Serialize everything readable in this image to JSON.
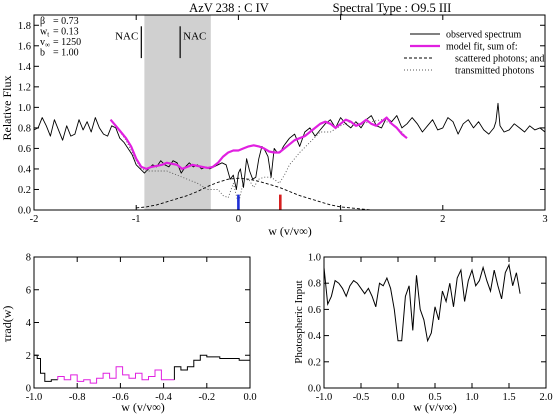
{
  "chart_data": [
    {
      "id": "main",
      "type": "line",
      "title_left": "AzV 238 : C IV",
      "title_right": "Spectral Type : O9.5 III",
      "xlabel": "w (v/v∞)",
      "ylabel": "Relative Flux",
      "xlim": [
        -2,
        3
      ],
      "ylim": [
        0,
        1.9
      ],
      "xticks": [
        -2,
        -1,
        0,
        1,
        2,
        3
      ],
      "yticks": [
        0.0,
        0.2,
        0.4,
        0.6,
        0.8,
        1.0,
        1.2,
        1.4,
        1.6,
        1.8
      ],
      "shaded_region": [
        -0.92,
        -0.27
      ],
      "params": [
        {
          "sym": "β",
          "val": "=  0.73"
        },
        {
          "sym": "w",
          "sub": "t",
          "val": "=  0.13"
        },
        {
          "sym": "v",
          "sub": "∞",
          "val": "=  1250"
        },
        {
          "sym": "b",
          "val": "=  1.00"
        }
      ],
      "nac_markers": [
        {
          "label": "NAC",
          "x": -0.95,
          "side": "left"
        },
        {
          "label": "NAC",
          "x": -0.57,
          "side": "right"
        }
      ],
      "ion_markers": [
        {
          "x": 0.0,
          "color": "#1f2fd6"
        },
        {
          "x": 0.41,
          "color": "#d61f1f"
        }
      ],
      "legend": [
        {
          "label": "observed spectrum",
          "style": "solid-thin"
        },
        {
          "label": "model fit, sum of:",
          "style": "solid-magenta"
        },
        {
          "label": "scattered photons; and",
          "style": "dashed"
        },
        {
          "label": "transmitted photons",
          "style": "dotted"
        }
      ],
      "series": [
        {
          "name": "observed spectrum",
          "color": "#000000",
          "x": [
            -2.0,
            -1.96,
            -1.92,
            -1.88,
            -1.84,
            -1.8,
            -1.76,
            -1.72,
            -1.68,
            -1.64,
            -1.6,
            -1.56,
            -1.52,
            -1.48,
            -1.44,
            -1.4,
            -1.36,
            -1.32,
            -1.28,
            -1.24,
            -1.2,
            -1.16,
            -1.12,
            -1.08,
            -1.04,
            -1.0,
            -0.96,
            -0.92,
            -0.88,
            -0.84,
            -0.8,
            -0.76,
            -0.72,
            -0.68,
            -0.64,
            -0.6,
            -0.56,
            -0.52,
            -0.48,
            -0.44,
            -0.4,
            -0.36,
            -0.32,
            -0.28,
            -0.24,
            -0.2,
            -0.16,
            -0.12,
            -0.08,
            -0.05,
            -0.02,
            0.0,
            0.02,
            0.05,
            0.08,
            0.11,
            0.14,
            0.17,
            0.2,
            0.23,
            0.26,
            0.29,
            0.32,
            0.35,
            0.38,
            0.41,
            0.44,
            0.47,
            0.5,
            0.55,
            0.6,
            0.65,
            0.7,
            0.75,
            0.8,
            0.85,
            0.9,
            0.95,
            1.0,
            1.05,
            1.1,
            1.15,
            1.2,
            1.25,
            1.3,
            1.35,
            1.4,
            1.45,
            1.5,
            1.55,
            1.6,
            1.65,
            1.7,
            1.75,
            1.8,
            1.85,
            1.9,
            1.95,
            2.0,
            2.05,
            2.1,
            2.15,
            2.2,
            2.25,
            2.3,
            2.35,
            2.4,
            2.45,
            2.5,
            2.52,
            2.54,
            2.56,
            2.6,
            2.65,
            2.7,
            2.75,
            2.8,
            2.85,
            2.9,
            2.95,
            3.0
          ],
          "y": [
            0.78,
            0.8,
            0.9,
            0.82,
            0.72,
            0.88,
            0.78,
            0.68,
            0.82,
            0.72,
            0.74,
            0.88,
            0.78,
            0.86,
            0.76,
            0.9,
            0.8,
            0.74,
            0.72,
            0.82,
            0.8,
            0.7,
            0.66,
            0.6,
            0.54,
            0.44,
            0.4,
            0.36,
            0.4,
            0.44,
            0.42,
            0.48,
            0.44,
            0.42,
            0.48,
            0.46,
            0.36,
            0.42,
            0.46,
            0.42,
            0.44,
            0.4,
            0.42,
            0.4,
            0.42,
            0.44,
            0.46,
            0.44,
            0.3,
            0.34,
            0.2,
            0.36,
            0.4,
            0.22,
            0.5,
            0.38,
            0.3,
            0.32,
            0.5,
            0.62,
            0.58,
            0.52,
            0.32,
            0.6,
            0.56,
            0.56,
            0.62,
            0.66,
            0.7,
            0.74,
            0.62,
            0.76,
            0.8,
            0.72,
            0.78,
            0.84,
            0.88,
            0.8,
            0.9,
            0.84,
            0.8,
            0.86,
            0.8,
            0.88,
            0.92,
            0.82,
            0.8,
            0.9,
            0.86,
            0.92,
            0.8,
            0.84,
            0.9,
            0.84,
            0.76,
            0.82,
            0.88,
            0.78,
            0.8,
            0.9,
            0.86,
            0.74,
            0.84,
            0.88,
            0.8,
            0.86,
            0.78,
            0.74,
            0.8,
            0.86,
            1.04,
            0.82,
            0.76,
            0.78,
            0.84,
            0.8,
            0.76,
            0.82,
            0.78,
            0.8,
            0.76
          ]
        },
        {
          "name": "model fit, sum of:",
          "color": "#e020e0",
          "x": [
            -1.25,
            -1.2,
            -1.15,
            -1.1,
            -1.05,
            -1.0,
            -0.95,
            -0.9,
            -0.85,
            -0.8,
            -0.75,
            -0.7,
            -0.65,
            -0.6,
            -0.55,
            -0.5,
            -0.45,
            -0.4,
            -0.35,
            -0.3,
            -0.25,
            -0.2,
            -0.15,
            -0.1,
            -0.05,
            0.0,
            0.05,
            0.1,
            0.15,
            0.2,
            0.25,
            0.3,
            0.35,
            0.4,
            0.45,
            0.5,
            0.55,
            0.6,
            0.65,
            0.7,
            0.75,
            0.8,
            0.85,
            0.9,
            0.95,
            1.0,
            1.05,
            1.1,
            1.15,
            1.2,
            1.25,
            1.3,
            1.35,
            1.4,
            1.45,
            1.5,
            1.55,
            1.6,
            1.65
          ],
          "y": [
            0.88,
            0.82,
            0.76,
            0.7,
            0.62,
            0.5,
            0.42,
            0.4,
            0.42,
            0.43,
            0.44,
            0.46,
            0.45,
            0.44,
            0.4,
            0.42,
            0.44,
            0.43,
            0.42,
            0.41,
            0.42,
            0.46,
            0.52,
            0.56,
            0.58,
            0.58,
            0.6,
            0.62,
            0.63,
            0.62,
            0.6,
            0.57,
            0.56,
            0.56,
            0.6,
            0.64,
            0.68,
            0.7,
            0.72,
            0.76,
            0.8,
            0.84,
            0.86,
            0.84,
            0.8,
            0.84,
            0.88,
            0.86,
            0.82,
            0.84,
            0.88,
            0.84,
            0.82,
            0.86,
            0.9,
            0.84,
            0.8,
            0.74,
            0.7
          ]
        },
        {
          "name": "scattered photons; and",
          "color": "#000000",
          "dash": "3,2",
          "x": [
            -1.0,
            -0.9,
            -0.8,
            -0.7,
            -0.6,
            -0.5,
            -0.4,
            -0.3,
            -0.2,
            -0.1,
            0.0,
            0.1,
            0.2,
            0.3,
            0.4,
            0.5,
            0.6,
            0.7,
            0.8,
            0.9,
            1.0,
            1.1,
            1.2,
            1.3
          ],
          "y": [
            0.02,
            0.03,
            0.05,
            0.08,
            0.11,
            0.14,
            0.18,
            0.23,
            0.27,
            0.3,
            0.31,
            0.3,
            0.28,
            0.25,
            0.22,
            0.18,
            0.14,
            0.11,
            0.08,
            0.05,
            0.03,
            0.02,
            0.01,
            0.0
          ]
        },
        {
          "name": "transmitted photons",
          "color": "#555555",
          "dash": "1,2",
          "x": [
            -1.25,
            -1.2,
            -1.1,
            -1.0,
            -0.95,
            -0.9,
            -0.8,
            -0.7,
            -0.6,
            -0.5,
            -0.4,
            -0.3,
            -0.2,
            -0.15,
            -0.1,
            -0.05,
            0.0,
            0.05,
            0.1,
            0.15,
            0.2,
            0.25,
            0.3,
            0.35,
            0.4,
            0.45,
            0.5,
            0.6,
            0.7,
            0.8,
            0.9,
            1.0,
            1.1,
            1.2,
            1.3,
            1.4,
            1.5,
            1.6,
            1.65
          ],
          "y": [
            0.88,
            0.82,
            0.68,
            0.48,
            0.4,
            0.38,
            0.38,
            0.38,
            0.34,
            0.3,
            0.26,
            0.2,
            0.2,
            0.14,
            0.12,
            0.26,
            0.06,
            0.28,
            0.3,
            0.22,
            0.3,
            0.32,
            0.32,
            0.3,
            0.26,
            0.34,
            0.44,
            0.56,
            0.66,
            0.76,
            0.76,
            0.82,
            0.86,
            0.84,
            0.86,
            0.88,
            0.84,
            0.76,
            0.7
          ]
        }
      ]
    },
    {
      "id": "tau",
      "type": "line",
      "xlabel": "w (v/v∞)",
      "ylabel": "τrad(w)",
      "xlim": [
        -1.0,
        0.0
      ],
      "ylim": [
        0,
        8
      ],
      "xticks": [
        -1.0,
        -0.8,
        -0.6,
        -0.4,
        -0.2,
        0.0
      ],
      "yticks": [
        0,
        2,
        4,
        6,
        8
      ],
      "series": [
        {
          "name": "black",
          "color": "#000000",
          "points": [
            [
              -1.0,
              2.0
            ],
            [
              -0.985,
              2.0
            ],
            [
              -0.985,
              1.8
            ],
            [
              -0.97,
              1.8
            ],
            [
              -0.97,
              0.9
            ],
            [
              -0.95,
              0.9
            ],
            [
              -0.95,
              0.4
            ],
            [
              -0.92,
              0.4
            ],
            [
              -0.92,
              0.5
            ],
            [
              -0.89,
              0.5
            ]
          ]
        },
        {
          "name": "magenta",
          "color": "#e020e0",
          "points": [
            [
              -0.89,
              0.5
            ],
            [
              -0.89,
              0.7
            ],
            [
              -0.86,
              0.7
            ],
            [
              -0.86,
              0.5
            ],
            [
              -0.83,
              0.5
            ],
            [
              -0.83,
              0.8
            ],
            [
              -0.8,
              0.8
            ],
            [
              -0.8,
              0.4
            ],
            [
              -0.77,
              0.4
            ],
            [
              -0.77,
              0.5
            ],
            [
              -0.74,
              0.5
            ],
            [
              -0.74,
              0.3
            ],
            [
              -0.71,
              0.3
            ],
            [
              -0.71,
              0.6
            ],
            [
              -0.68,
              0.6
            ],
            [
              -0.68,
              0.9
            ],
            [
              -0.65,
              0.9
            ],
            [
              -0.65,
              0.6
            ],
            [
              -0.62,
              0.6
            ],
            [
              -0.62,
              1.3
            ],
            [
              -0.59,
              1.3
            ],
            [
              -0.59,
              0.8
            ],
            [
              -0.56,
              0.8
            ],
            [
              -0.56,
              0.6
            ],
            [
              -0.53,
              0.6
            ],
            [
              -0.53,
              0.9
            ],
            [
              -0.5,
              0.9
            ],
            [
              -0.5,
              0.5
            ],
            [
              -0.47,
              0.5
            ],
            [
              -0.47,
              0.7
            ],
            [
              -0.44,
              0.7
            ],
            [
              -0.44,
              1.1
            ],
            [
              -0.41,
              1.1
            ],
            [
              -0.41,
              0.5
            ],
            [
              -0.38,
              0.5
            ],
            [
              -0.38,
              0.5
            ],
            [
              -0.35,
              0.5
            ]
          ]
        },
        {
          "name": "black-right",
          "color": "#000000",
          "points": [
            [
              -0.35,
              0.5
            ],
            [
              -0.35,
              1.3
            ],
            [
              -0.32,
              1.3
            ],
            [
              -0.32,
              1.1
            ],
            [
              -0.29,
              1.1
            ],
            [
              -0.29,
              1.3
            ],
            [
              -0.26,
              1.3
            ],
            [
              -0.26,
              1.7
            ],
            [
              -0.23,
              1.7
            ],
            [
              -0.23,
              2.0
            ],
            [
              -0.2,
              2.0
            ],
            [
              -0.2,
              1.9
            ],
            [
              -0.14,
              1.9
            ],
            [
              -0.14,
              1.8
            ],
            [
              -0.05,
              1.8
            ],
            [
              -0.05,
              1.7
            ],
            [
              0.0,
              1.7
            ]
          ]
        }
      ]
    },
    {
      "id": "photo",
      "type": "line",
      "xlabel": "w (v/v∞)",
      "ylabel": "Photospheric Input",
      "xlim": [
        -1.0,
        2.0
      ],
      "ylim": [
        0,
        1.0
      ],
      "xticks": [
        -1.0,
        -0.5,
        0.0,
        0.5,
        1.0,
        1.5,
        2.0
      ],
      "yticks": [
        0.0,
        0.2,
        0.4,
        0.6,
        0.8,
        1.0
      ],
      "series": [
        {
          "name": "photospheric input",
          "color": "#000000",
          "x": [
            -1.0,
            -0.95,
            -0.9,
            -0.85,
            -0.8,
            -0.75,
            -0.7,
            -0.65,
            -0.6,
            -0.55,
            -0.5,
            -0.45,
            -0.4,
            -0.35,
            -0.3,
            -0.25,
            -0.2,
            -0.15,
            -0.1,
            -0.05,
            0.0,
            0.05,
            0.1,
            0.15,
            0.2,
            0.25,
            0.3,
            0.35,
            0.4,
            0.45,
            0.5,
            0.55,
            0.6,
            0.65,
            0.7,
            0.75,
            0.8,
            0.85,
            0.9,
            0.95,
            1.0,
            1.05,
            1.1,
            1.15,
            1.2,
            1.25,
            1.3,
            1.35,
            1.4,
            1.45,
            1.5,
            1.55,
            1.6,
            1.65
          ],
          "y": [
            0.92,
            0.64,
            0.7,
            0.82,
            0.8,
            0.76,
            0.7,
            0.78,
            0.82,
            0.8,
            0.76,
            0.72,
            0.76,
            0.7,
            0.62,
            0.8,
            0.78,
            0.84,
            0.76,
            0.6,
            0.36,
            0.36,
            0.7,
            0.78,
            0.44,
            0.86,
            0.6,
            0.52,
            0.36,
            0.42,
            0.62,
            0.52,
            0.74,
            0.66,
            0.8,
            0.62,
            0.84,
            0.9,
            0.66,
            0.82,
            0.9,
            0.78,
            0.82,
            0.92,
            0.82,
            0.74,
            0.9,
            0.78,
            0.68,
            0.88,
            0.94,
            0.78,
            0.88,
            0.72
          ]
        }
      ]
    }
  ]
}
